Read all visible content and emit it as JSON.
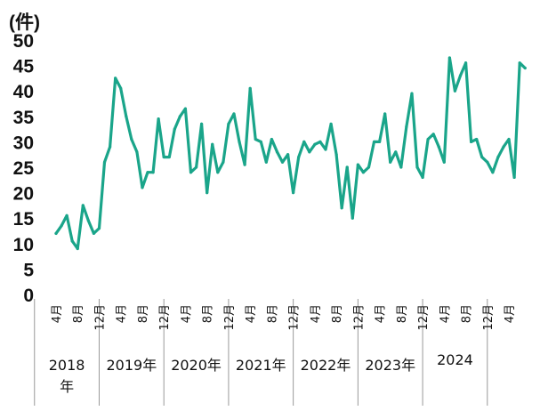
{
  "chart_data": {
    "type": "line",
    "unit_label": "(件)",
    "ylim": [
      0,
      50
    ],
    "yticks": [
      "0",
      "5",
      "10",
      "15",
      "20",
      "25",
      "30",
      "35",
      "40",
      "45",
      "50"
    ],
    "grid": false,
    "line_color": "#1aa58a",
    "month_labels": [
      "4月",
      "8月",
      "12月"
    ],
    "year_labels": [
      "2018\n年",
      "2019年",
      "2020年",
      "2021年",
      "2022年",
      "2023年",
      "2024"
    ],
    "series": [
      {
        "values": [
          12,
          13.5,
          15.5,
          10.5,
          9,
          17.5,
          14.5,
          12,
          13,
          26,
          29,
          42.5,
          40.5,
          35,
          30.5,
          28,
          21,
          24,
          24,
          34.5,
          27,
          27,
          32.5,
          35,
          36.5,
          24,
          25,
          33.5,
          20,
          29.5,
          24,
          26,
          33.5,
          35.5,
          30,
          25.5,
          40.5,
          30.5,
          30,
          26,
          30.5,
          28,
          26,
          27.5,
          20,
          27,
          30,
          28,
          29.5,
          30,
          28.5,
          33.5,
          27.5,
          17,
          25,
          15,
          25.5,
          24,
          25,
          30,
          30,
          35.5,
          26,
          28,
          25,
          33,
          39.5,
          25,
          23,
          30.5,
          31.5,
          29,
          26,
          46.5,
          40,
          43,
          45.5,
          30,
          30.5,
          27,
          26,
          24,
          27,
          29,
          30.5,
          23,
          45.5,
          44.5
        ]
      }
    ]
  }
}
